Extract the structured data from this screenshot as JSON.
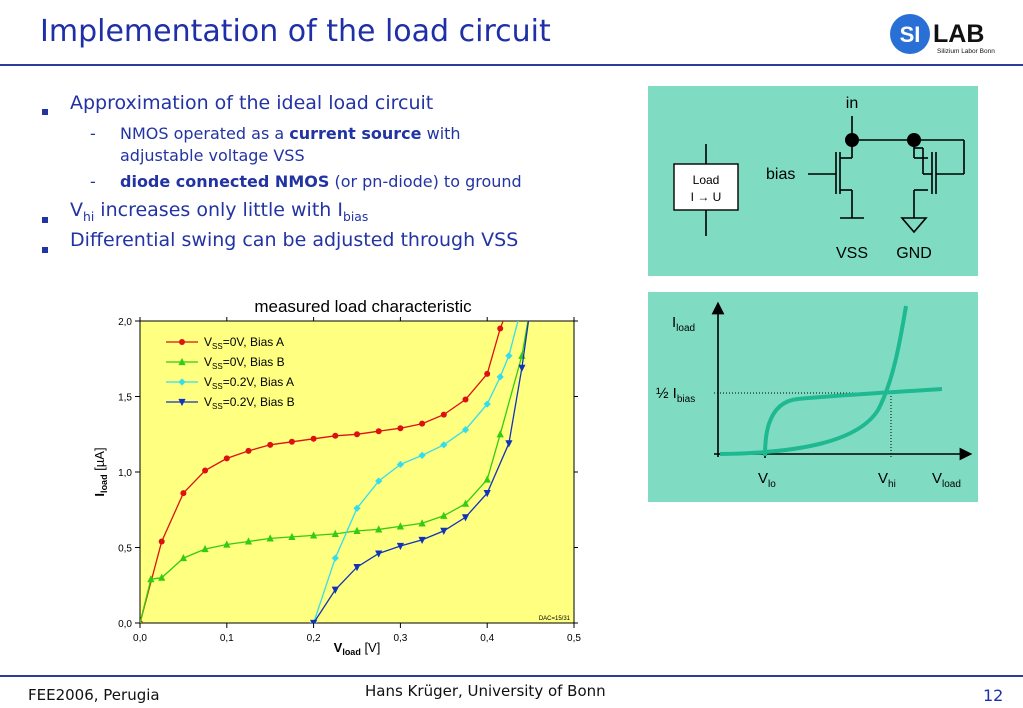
{
  "slide": {
    "title": "Implementation of the load circuit",
    "logo": {
      "si": "SI",
      "lab": "LAB",
      "sub": "Silizium Labor Bonn"
    },
    "bullets": {
      "b1": "Approximation of the ideal load circuit",
      "s1_pre": "NMOS operated as a ",
      "s1_bold": "current source",
      "s1_post": " with",
      "s1_line2": "adjustable voltage VSS",
      "s2_bold": "diode connected NMOS",
      "s2_post": " (or pn-diode) to ground",
      "b2_v": "V",
      "b2_hi": "hi",
      "b2_mid": " increases only little with I",
      "b2_bias": "bias",
      "b3": "Differential swing can be adjusted through VSS",
      "dash": "-"
    },
    "footer": {
      "left": "FEE2006, Perugia",
      "center": "Hans Krüger, University of Bonn",
      "page": "12"
    }
  },
  "circuit": {
    "in": "in",
    "bias": "bias",
    "vss": "VSS",
    "gnd": "GND",
    "load_line1": "Load",
    "load_line2": "I → U"
  },
  "sketch": {
    "i": "I",
    "load": "load",
    "half": "½ I",
    "bias": "bias",
    "v": "V",
    "lo": "lo",
    "hi": "hi"
  },
  "chart_data": {
    "type": "line",
    "title": "measured load characteristic",
    "xlabel_main": "V",
    "xlabel_sub": "load",
    "xlabel_unit": " [V]",
    "ylabel_main": "I",
    "ylabel_sub": "load",
    "ylabel_unit": " [µA]",
    "xlim": [
      0,
      0.5
    ],
    "ylim": [
      0,
      2.0
    ],
    "xticks": [
      "0,0",
      "0,1",
      "0,2",
      "0,3",
      "0,4",
      "0,5"
    ],
    "yticks": [
      "0,0",
      "0,5",
      "1,0",
      "1,5",
      "2,0"
    ],
    "annotation": "DAC=15/31",
    "legend_placement": "top-left",
    "plot_background": "#ffff80",
    "series": [
      {
        "name_v": "V",
        "name_sub": "SS",
        "name_rest": "=0V,    Bias A",
        "color": "#dd1111",
        "marker": "circle",
        "points": [
          [
            0,
            0
          ],
          [
            0.025,
            0.54
          ],
          [
            0.05,
            0.86
          ],
          [
            0.075,
            1.01
          ],
          [
            0.1,
            1.09
          ],
          [
            0.125,
            1.14
          ],
          [
            0.15,
            1.18
          ],
          [
            0.175,
            1.2
          ],
          [
            0.2,
            1.22
          ],
          [
            0.225,
            1.24
          ],
          [
            0.25,
            1.25
          ],
          [
            0.275,
            1.27
          ],
          [
            0.3,
            1.29
          ],
          [
            0.325,
            1.32
          ],
          [
            0.35,
            1.38
          ],
          [
            0.375,
            1.48
          ],
          [
            0.4,
            1.65
          ],
          [
            0.415,
            1.95
          ],
          [
            0.425,
            2.1
          ]
        ]
      },
      {
        "name_v": "V",
        "name_sub": "SS",
        "name_rest": "=0V,    Bias B",
        "color": "#33cc11",
        "marker": "triangle-up",
        "points": [
          [
            0,
            0
          ],
          [
            0.0125,
            0.29
          ],
          [
            0.025,
            0.3
          ],
          [
            0.05,
            0.43
          ],
          [
            0.075,
            0.49
          ],
          [
            0.1,
            0.52
          ],
          [
            0.125,
            0.54
          ],
          [
            0.15,
            0.56
          ],
          [
            0.175,
            0.57
          ],
          [
            0.2,
            0.58
          ],
          [
            0.225,
            0.59
          ],
          [
            0.25,
            0.61
          ],
          [
            0.275,
            0.62
          ],
          [
            0.3,
            0.64
          ],
          [
            0.325,
            0.66
          ],
          [
            0.35,
            0.71
          ],
          [
            0.375,
            0.79
          ],
          [
            0.4,
            0.95
          ],
          [
            0.415,
            1.25
          ],
          [
            0.44,
            1.77
          ],
          [
            0.45,
            2.1
          ]
        ]
      },
      {
        "name_v": "V",
        "name_sub": "SS",
        "name_rest": "=0.2V, Bias A",
        "color": "#33ddee",
        "marker": "diamond",
        "points": [
          [
            0.2,
            0
          ],
          [
            0.225,
            0.43
          ],
          [
            0.25,
            0.76
          ],
          [
            0.275,
            0.94
          ],
          [
            0.3,
            1.05
          ],
          [
            0.325,
            1.11
          ],
          [
            0.35,
            1.18
          ],
          [
            0.375,
            1.28
          ],
          [
            0.4,
            1.45
          ],
          [
            0.415,
            1.63
          ],
          [
            0.425,
            1.77
          ],
          [
            0.44,
            2.1
          ]
        ]
      },
      {
        "name_v": "V",
        "name_sub": "SS",
        "name_rest": "=0.2V, Bias B",
        "color": "#1133bb",
        "marker": "triangle-down",
        "points": [
          [
            0.2,
            0
          ],
          [
            0.225,
            0.22
          ],
          [
            0.25,
            0.37
          ],
          [
            0.275,
            0.46
          ],
          [
            0.3,
            0.51
          ],
          [
            0.325,
            0.55
          ],
          [
            0.35,
            0.61
          ],
          [
            0.375,
            0.7
          ],
          [
            0.4,
            0.86
          ],
          [
            0.425,
            1.19
          ],
          [
            0.44,
            1.69
          ],
          [
            0.45,
            2.1
          ]
        ]
      }
    ]
  }
}
